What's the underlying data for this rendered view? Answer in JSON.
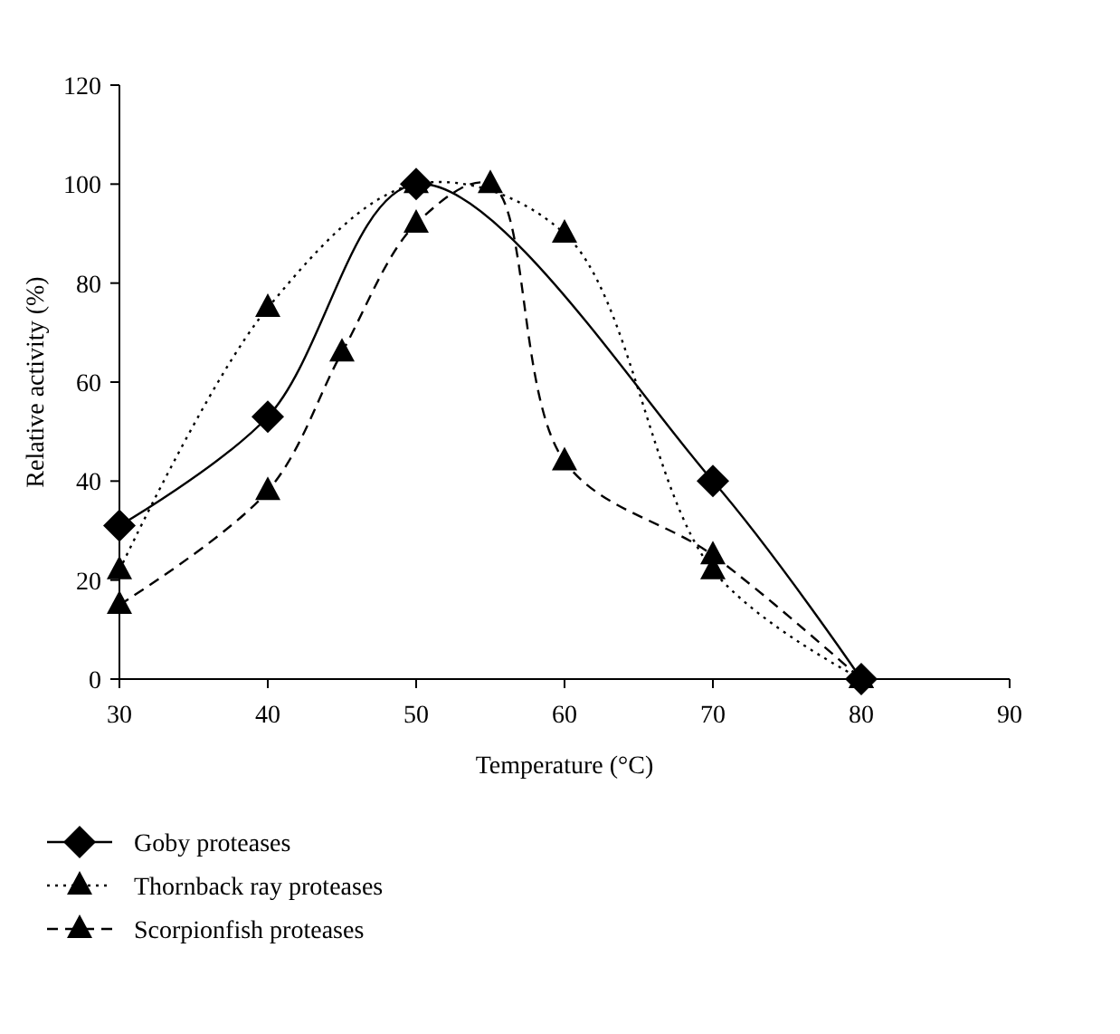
{
  "chart_data": {
    "type": "line",
    "xlabel": "Temperature (°C)",
    "ylabel": "Relative activity (%)",
    "xlim": [
      30,
      90
    ],
    "xticks": [
      30,
      40,
      50,
      60,
      70,
      80,
      90
    ],
    "ylim": [
      0,
      120
    ],
    "yticks": [
      0,
      20,
      40,
      60,
      80,
      100,
      120
    ],
    "grid": false,
    "legend": "bottom",
    "series": [
      {
        "name": "Goby proteases",
        "color": "#000000",
        "marker": "diamond",
        "line_style": "solid",
        "x": [
          30,
          40,
          50,
          70,
          80
        ],
        "values": [
          31,
          53,
          100,
          40,
          0
        ]
      },
      {
        "name": "Thornback ray proteases",
        "color": "#000000",
        "marker": "triangle",
        "line_style": "dotted",
        "x": [
          30,
          40,
          50,
          60,
          70,
          80
        ],
        "values": [
          22,
          75,
          100,
          90,
          22,
          0
        ]
      },
      {
        "name": "Scorpionfish proteases",
        "color": "#000000",
        "marker": "triangle",
        "line_style": "dashed",
        "x": [
          30,
          40,
          45,
          50,
          55,
          60,
          70,
          80
        ],
        "values": [
          15,
          38,
          66,
          92,
          100,
          44,
          25,
          0
        ]
      }
    ]
  }
}
